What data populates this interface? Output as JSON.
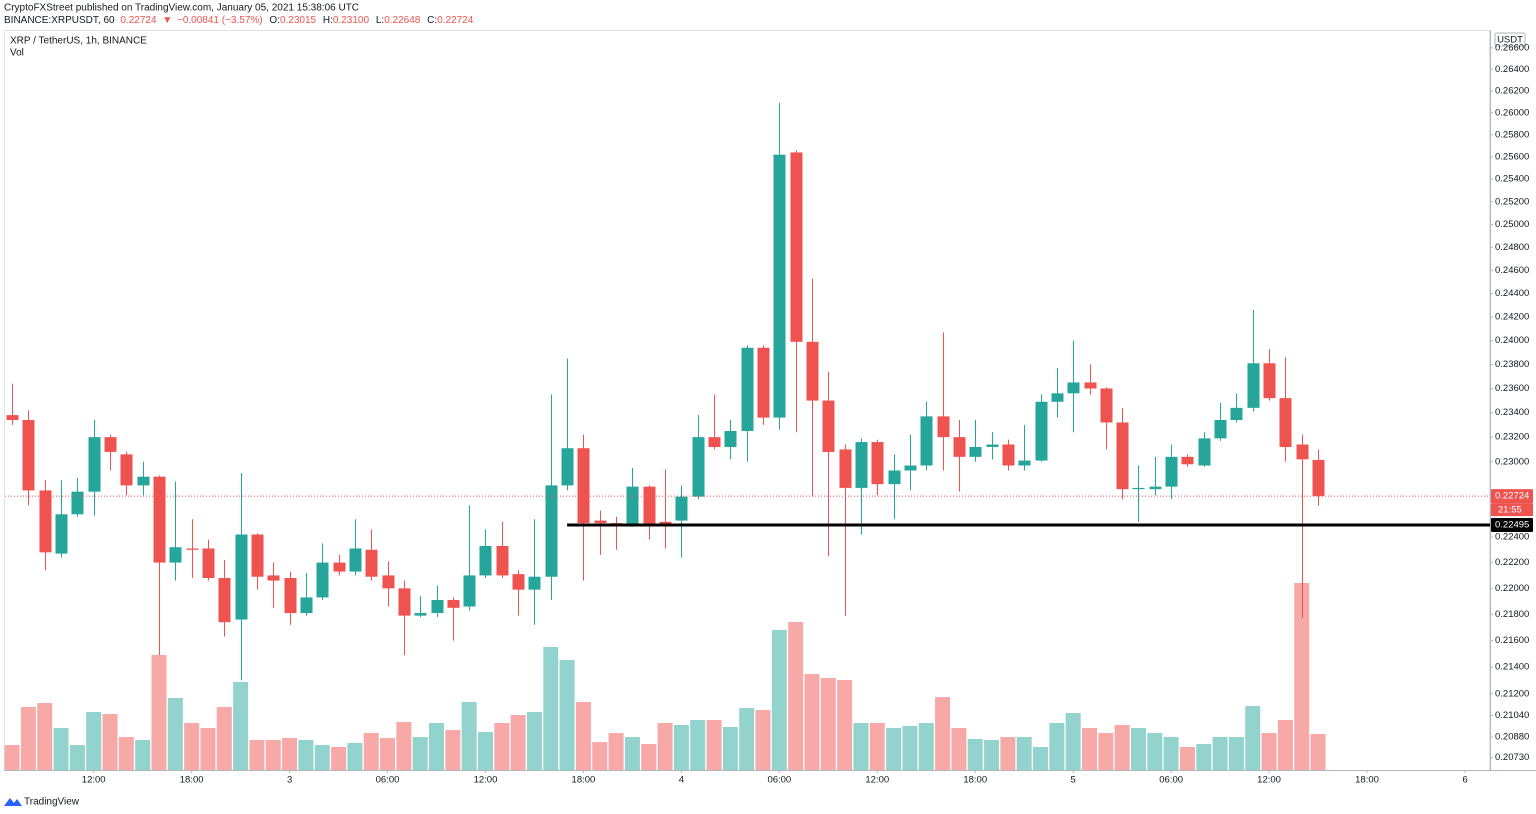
{
  "header": {
    "publisher": "CryptoFXStreet published on TradingView.com, January 05, 2021 15:38:06 UTC",
    "symbol": "BINANCE:XRPUSDT, 60",
    "last": "0.22724",
    "direction": "▼",
    "change": "−0.00841 (−3.57%)",
    "ohlc": [
      {
        "label": "O:",
        "value": "0.23015"
      },
      {
        "label": "H:",
        "value": "0.23100"
      },
      {
        "label": "L:",
        "value": "0.22648"
      },
      {
        "label": "C:",
        "value": "0.22724"
      }
    ]
  },
  "footer": {
    "brand": "TradingView"
  },
  "chart_data": {
    "type": "candlestick",
    "title": "XRP / TetherUS, 1h, BINANCE",
    "volume_label": "Vol",
    "currency": "USDT",
    "log_scale": true,
    "grid": false,
    "colors": {
      "up": "#26a69a",
      "down": "#ef5350",
      "volume_up": "#93d3cd",
      "volume_down": "#f7a9a7",
      "support": "#000000"
    },
    "x": [
      "2021-01-02T07:00",
      "2021-01-02T08:00",
      "2021-01-02T09:00",
      "2021-01-02T10:00",
      "2021-01-02T11:00",
      "2021-01-02T12:00",
      "2021-01-02T13:00",
      "2021-01-02T14:00",
      "2021-01-02T15:00",
      "2021-01-02T16:00",
      "2021-01-02T17:00",
      "2021-01-02T18:00",
      "2021-01-02T19:00",
      "2021-01-02T20:00",
      "2021-01-02T21:00",
      "2021-01-02T22:00",
      "2021-01-02T23:00",
      "2021-01-03T00:00",
      "2021-01-03T01:00",
      "2021-01-03T02:00",
      "2021-01-03T03:00",
      "2021-01-03T04:00",
      "2021-01-03T05:00",
      "2021-01-03T06:00",
      "2021-01-03T07:00",
      "2021-01-03T08:00",
      "2021-01-03T09:00",
      "2021-01-03T10:00",
      "2021-01-03T11:00",
      "2021-01-03T12:00",
      "2021-01-03T13:00",
      "2021-01-03T14:00",
      "2021-01-03T15:00",
      "2021-01-03T16:00",
      "2021-01-03T17:00",
      "2021-01-03T18:00",
      "2021-01-03T19:00",
      "2021-01-03T20:00",
      "2021-01-03T21:00",
      "2021-01-03T22:00",
      "2021-01-03T23:00",
      "2021-01-04T00:00",
      "2021-01-04T01:00",
      "2021-01-04T02:00",
      "2021-01-04T03:00",
      "2021-01-04T04:00",
      "2021-01-04T05:00",
      "2021-01-04T06:00",
      "2021-01-04T07:00",
      "2021-01-04T08:00",
      "2021-01-04T09:00",
      "2021-01-04T10:00",
      "2021-01-04T11:00",
      "2021-01-04T12:00",
      "2021-01-04T13:00",
      "2021-01-04T14:00",
      "2021-01-04T15:00",
      "2021-01-04T16:00",
      "2021-01-04T17:00",
      "2021-01-04T18:00",
      "2021-01-04T19:00",
      "2021-01-04T20:00",
      "2021-01-04T21:00",
      "2021-01-04T22:00",
      "2021-01-04T23:00",
      "2021-01-05T00:00",
      "2021-01-05T01:00",
      "2021-01-05T02:00",
      "2021-01-05T03:00",
      "2021-01-05T04:00",
      "2021-01-05T05:00",
      "2021-01-05T06:00",
      "2021-01-05T07:00",
      "2021-01-05T08:00",
      "2021-01-05T09:00",
      "2021-01-05T10:00",
      "2021-01-05T11:00",
      "2021-01-05T12:00",
      "2021-01-05T13:00",
      "2021-01-05T14:00",
      "2021-01-05T15:00"
    ],
    "open": [
      0.2338,
      0.2334,
      0.2277,
      0.2227,
      0.2258,
      0.2276,
      0.232,
      0.2306,
      0.2281,
      0.2288,
      0.222,
      0.2231,
      0.2231,
      0.2208,
      0.2176,
      0.2242,
      0.221,
      0.2208,
      0.2181,
      0.2193,
      0.222,
      0.2213,
      0.223,
      0.221,
      0.22,
      0.2179,
      0.2181,
      0.2191,
      0.2186,
      0.221,
      0.2233,
      0.2211,
      0.2199,
      0.2209,
      0.2281,
      0.2311,
      0.2253,
      0.2251,
      0.225,
      0.228,
      0.2252,
      0.2253,
      0.2272,
      0.232,
      0.2312,
      0.2325,
      0.2394,
      0.2336,
      0.2564,
      0.2399,
      0.235,
      0.231,
      0.2279,
      0.2316,
      0.2282,
      0.2293,
      0.2297,
      0.2337,
      0.232,
      0.2304,
      0.2312,
      0.2314,
      0.2297,
      0.2301,
      0.2349,
      0.2356,
      0.2365,
      0.236,
      0.2332,
      0.2278,
      0.2278,
      0.228,
      0.2304,
      0.2297,
      0.2319,
      0.2334,
      0.2344,
      0.2381,
      0.2352,
      0.2314,
      0.23015
    ],
    "high": [
      0.2364,
      0.2342,
      0.2285,
      0.2285,
      0.2287,
      0.2334,
      0.2322,
      0.2308,
      0.23,
      0.2289,
      0.2284,
      0.2254,
      0.2238,
      0.2222,
      0.2291,
      0.2243,
      0.222,
      0.2213,
      0.2212,
      0.2235,
      0.2226,
      0.2254,
      0.2246,
      0.2221,
      0.2206,
      0.2194,
      0.2202,
      0.2193,
      0.2265,
      0.2246,
      0.2252,
      0.2214,
      0.2254,
      0.2355,
      0.2385,
      0.2322,
      0.2261,
      0.2256,
      0.2295,
      0.2281,
      0.2294,
      0.2281,
      0.2338,
      0.2355,
      0.2334,
      0.2396,
      0.2396,
      0.2609,
      0.2566,
      0.2453,
      0.2374,
      0.2314,
      0.2319,
      0.2318,
      0.2306,
      0.2322,
      0.2349,
      0.2407,
      0.2334,
      0.2334,
      0.2324,
      0.2318,
      0.233,
      0.2355,
      0.2377,
      0.24,
      0.238,
      0.2361,
      0.2344,
      0.2297,
      0.2304,
      0.2314,
      0.2306,
      0.2324,
      0.2348,
      0.2356,
      0.2426,
      0.2393,
      0.2386,
      0.2322,
      0.231
    ],
    "low": [
      0.233,
      0.2265,
      0.2214,
      0.2224,
      0.2256,
      0.2257,
      0.2293,
      0.2273,
      0.2273,
      0.2149,
      0.2206,
      0.2208,
      0.2206,
      0.2163,
      0.213,
      0.2199,
      0.2185,
      0.2172,
      0.2179,
      0.2191,
      0.221,
      0.221,
      0.2206,
      0.2186,
      0.2149,
      0.2178,
      0.2178,
      0.216,
      0.2183,
      0.2208,
      0.2208,
      0.2179,
      0.2172,
      0.2191,
      0.2277,
      0.2206,
      0.2226,
      0.223,
      0.2248,
      0.2238,
      0.2231,
      0.2224,
      0.227,
      0.231,
      0.2302,
      0.23,
      0.233,
      0.2326,
      0.2324,
      0.2272,
      0.2225,
      0.2179,
      0.2242,
      0.2273,
      0.2254,
      0.2277,
      0.2293,
      0.2293,
      0.2276,
      0.23,
      0.2302,
      0.2293,
      0.2293,
      0.23,
      0.2336,
      0.2324,
      0.2355,
      0.231,
      0.227,
      0.2252,
      0.2273,
      0.227,
      0.2296,
      0.2296,
      0.2317,
      0.2332,
      0.2341,
      0.235,
      0.23,
      0.2177,
      0.22648
    ],
    "close": [
      0.2334,
      0.2277,
      0.2228,
      0.2258,
      0.2276,
      0.232,
      0.2308,
      0.2281,
      0.2288,
      0.222,
      0.2232,
      0.223,
      0.2208,
      0.2174,
      0.2242,
      0.2209,
      0.2206,
      0.2181,
      0.2193,
      0.222,
      0.2213,
      0.2231,
      0.2209,
      0.22,
      0.2179,
      0.2181,
      0.2191,
      0.2185,
      0.221,
      0.2233,
      0.221,
      0.2199,
      0.2209,
      0.2281,
      0.2311,
      0.2251,
      0.2251,
      0.22495,
      0.228,
      0.225,
      0.225,
      0.2272,
      0.232,
      0.2312,
      0.2325,
      0.2394,
      0.2336,
      0.2562,
      0.2399,
      0.235,
      0.2308,
      0.2279,
      0.2316,
      0.2282,
      0.2293,
      0.2297,
      0.2337,
      0.232,
      0.2304,
      0.2312,
      0.2314,
      0.2297,
      0.2301,
      0.2349,
      0.2356,
      0.2365,
      0.236,
      0.2332,
      0.2278,
      0.2279,
      0.228,
      0.2304,
      0.2298,
      0.2319,
      0.2334,
      0.2344,
      0.2381,
      0.2352,
      0.2312,
      0.2302,
      0.22724
    ],
    "volume": [
      25,
      63,
      67,
      42,
      25,
      58,
      56,
      33,
      30,
      115,
      72,
      47,
      42,
      63,
      88,
      30,
      30,
      32,
      30,
      25,
      23,
      27,
      37,
      32,
      48,
      33,
      47,
      40,
      68,
      38,
      47,
      55,
      58,
      123,
      110,
      68,
      28,
      37,
      33,
      26,
      47,
      45,
      50,
      50,
      43,
      62,
      60,
      140,
      148,
      96,
      92,
      90,
      47,
      47,
      42,
      44,
      47,
      73,
      42,
      31,
      30,
      33,
      33,
      23,
      47,
      57,
      42,
      37,
      45,
      42,
      37,
      33,
      23,
      26,
      33,
      33,
      64,
      37,
      50,
      187,
      36
    ],
    "volume_lim": [
      0,
      735
    ],
    "xlim": [
      "2021-01-02T06:34",
      "2021-01-06T01:32"
    ],
    "xticks": [
      {
        "value": "2021-01-02T12:00",
        "label": "12:00"
      },
      {
        "value": "2021-01-02T18:00",
        "label": "18:00"
      },
      {
        "value": "2021-01-03T00:00",
        "label": "3"
      },
      {
        "value": "2021-01-03T06:00",
        "label": "06:00"
      },
      {
        "value": "2021-01-03T12:00",
        "label": "12:00"
      },
      {
        "value": "2021-01-03T18:00",
        "label": "18:00"
      },
      {
        "value": "2021-01-04T00:00",
        "label": "4"
      },
      {
        "value": "2021-01-04T06:00",
        "label": "06:00"
      },
      {
        "value": "2021-01-04T12:00",
        "label": "12:00"
      },
      {
        "value": "2021-01-04T18:00",
        "label": "18:00"
      },
      {
        "value": "2021-01-05T00:00",
        "label": "5"
      },
      {
        "value": "2021-01-05T06:00",
        "label": "06:00"
      },
      {
        "value": "2021-01-05T12:00",
        "label": "12:00"
      },
      {
        "value": "2021-01-05T18:00",
        "label": "18:00"
      },
      {
        "value": "2021-01-06T00:00",
        "label": "6"
      }
    ],
    "ylim": [
      0.2064,
      0.2672
    ],
    "yticks": [
      {
        "value": 0.266,
        "label": "0.26600"
      },
      {
        "value": 0.264,
        "label": "0.26400"
      },
      {
        "value": 0.262,
        "label": "0.26200"
      },
      {
        "value": 0.26,
        "label": "0.26000"
      },
      {
        "value": 0.258,
        "label": "0.25800"
      },
      {
        "value": 0.256,
        "label": "0.25600"
      },
      {
        "value": 0.254,
        "label": "0.25400"
      },
      {
        "value": 0.252,
        "label": "0.25200"
      },
      {
        "value": 0.25,
        "label": "0.25000"
      },
      {
        "value": 0.248,
        "label": "0.24800"
      },
      {
        "value": 0.246,
        "label": "0.24600"
      },
      {
        "value": 0.244,
        "label": "0.24400"
      },
      {
        "value": 0.242,
        "label": "0.24200"
      },
      {
        "value": 0.24,
        "label": "0.24000"
      },
      {
        "value": 0.238,
        "label": "0.23800"
      },
      {
        "value": 0.236,
        "label": "0.23600"
      },
      {
        "value": 0.234,
        "label": "0.23400"
      },
      {
        "value": 0.232,
        "label": "0.23200"
      },
      {
        "value": 0.23,
        "label": "0.23000"
      },
      {
        "value": 0.224,
        "label": "0.22400"
      },
      {
        "value": 0.222,
        "label": "0.22200"
      },
      {
        "value": 0.22,
        "label": "0.22000"
      },
      {
        "value": 0.218,
        "label": "0.21800"
      },
      {
        "value": 0.216,
        "label": "0.21600"
      },
      {
        "value": 0.214,
        "label": "0.21400"
      },
      {
        "value": 0.212,
        "label": "0.21200"
      },
      {
        "value": 0.2104,
        "label": "0.21040"
      },
      {
        "value": 0.2088,
        "label": "0.20880"
      },
      {
        "value": 0.2073,
        "label": "0.20730"
      }
    ],
    "last_price": {
      "value": 0.22724,
      "label": "0.22724",
      "countdown": "21:55"
    },
    "support": {
      "value": 0.22495,
      "label": "0.22495",
      "from": "2021-01-03T17:00"
    }
  }
}
